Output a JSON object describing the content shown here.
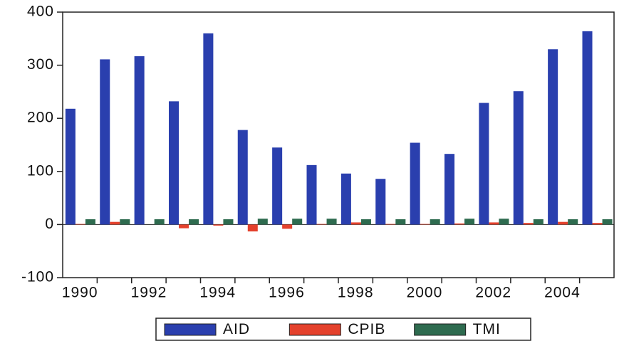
{
  "chart_data": {
    "type": "bar",
    "categories": [
      "1990",
      null,
      "1992",
      null,
      "1994",
      null,
      "1996",
      null,
      "1998",
      null,
      "2000",
      null,
      "2002",
      null,
      "2004",
      null
    ],
    "series": [
      {
        "name": "AID",
        "color": "#2a3fae",
        "values": [
          218,
          311,
          317,
          232,
          360,
          178,
          145,
          112,
          96,
          86,
          154,
          133,
          229,
          251,
          330,
          364
        ]
      },
      {
        "name": "CPIB",
        "color": "#e4412c",
        "values": [
          1,
          5,
          0,
          -7,
          -2,
          -13,
          -8,
          1,
          4,
          1,
          1,
          2,
          4,
          3,
          5,
          3
        ]
      },
      {
        "name": "TMI",
        "color": "#2e6b4f",
        "values": [
          10,
          10,
          10,
          10,
          10,
          11,
          11,
          11,
          10,
          10,
          10,
          11,
          11,
          10,
          10,
          10
        ]
      }
    ],
    "ylim": [
      -100,
      400
    ],
    "yticks": [
      -100,
      0,
      100,
      200,
      300,
      400
    ],
    "legend": "bottom"
  }
}
